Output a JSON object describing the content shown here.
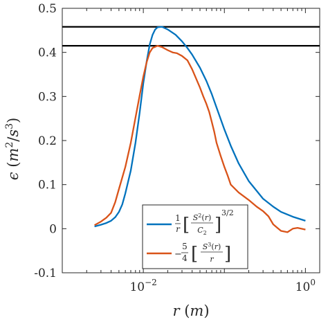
{
  "chart_data": {
    "type": "line",
    "xscale": "log",
    "xlim": [
      0.001,
      1.5
    ],
    "ylim": [
      -0.1,
      0.5
    ],
    "x_ticks": [
      {
        "value": 0.01,
        "base": "10",
        "exp": "−2"
      },
      {
        "value": 1,
        "base": "10",
        "exp": "0"
      }
    ],
    "y_ticks": [
      -0.1,
      0,
      0.1,
      0.2,
      0.3,
      0.4,
      0.5
    ],
    "y_tick_labels": [
      "-0.1",
      "0",
      "0.1",
      "0.2",
      "0.3",
      "0.4",
      "0.5"
    ],
    "xlabel": {
      "var": "r",
      "unit": "m"
    },
    "ylabel": {
      "var": "ϵ",
      "unit_base1": "m",
      "unit_exp1": "2",
      "unit_base2": "s",
      "unit_exp2": "3"
    },
    "grid": false,
    "legend_position": "bottom-right",
    "hlines": [
      0.458,
      0.415
    ],
    "series": [
      {
        "name": "1/r [S²(r)/C₂]^(3/2)",
        "color": "#0072BD",
        "x": [
          0.0025,
          0.003,
          0.0035,
          0.004,
          0.0045,
          0.005,
          0.0055,
          0.006,
          0.007,
          0.008,
          0.009,
          0.01,
          0.011,
          0.012,
          0.013,
          0.014,
          0.015,
          0.017,
          0.02,
          0.025,
          0.03,
          0.035,
          0.04,
          0.05,
          0.06,
          0.07,
          0.08,
          0.1,
          0.12,
          0.15,
          0.2,
          0.3,
          0.4,
          0.5,
          0.7,
          1.0
        ],
        "y": [
          0.005,
          0.009,
          0.013,
          0.018,
          0.026,
          0.038,
          0.055,
          0.08,
          0.132,
          0.195,
          0.263,
          0.33,
          0.38,
          0.418,
          0.44,
          0.452,
          0.457,
          0.458,
          0.452,
          0.44,
          0.425,
          0.41,
          0.395,
          0.365,
          0.335,
          0.305,
          0.275,
          0.225,
          0.188,
          0.148,
          0.108,
          0.068,
          0.05,
          0.038,
          0.027,
          0.018
        ]
      },
      {
        "name": "−5/4 [S³(r)/r]",
        "color": "#D95319",
        "x": [
          0.0025,
          0.003,
          0.0035,
          0.004,
          0.0045,
          0.005,
          0.006,
          0.007,
          0.008,
          0.009,
          0.01,
          0.011,
          0.012,
          0.013,
          0.015,
          0.017,
          0.02,
          0.023,
          0.026,
          0.03,
          0.035,
          0.04,
          0.045,
          0.05,
          0.055,
          0.06,
          0.065,
          0.07,
          0.075,
          0.08,
          0.09,
          0.1,
          0.11,
          0.12,
          0.15,
          0.2,
          0.25,
          0.3,
          0.35,
          0.4,
          0.45,
          0.5,
          0.6,
          0.7,
          0.8,
          1.0
        ],
        "y": [
          0.008,
          0.016,
          0.025,
          0.036,
          0.06,
          0.09,
          0.14,
          0.195,
          0.252,
          0.302,
          0.345,
          0.378,
          0.4,
          0.41,
          0.415,
          0.412,
          0.405,
          0.4,
          0.398,
          0.392,
          0.382,
          0.362,
          0.34,
          0.32,
          0.3,
          0.283,
          0.265,
          0.242,
          0.22,
          0.195,
          0.165,
          0.14,
          0.12,
          0.1,
          0.082,
          0.065,
          0.05,
          0.04,
          0.028,
          0.01,
          0.002,
          -0.005,
          -0.008,
          0.0,
          0.002,
          -0.002
        ]
      }
    ]
  }
}
